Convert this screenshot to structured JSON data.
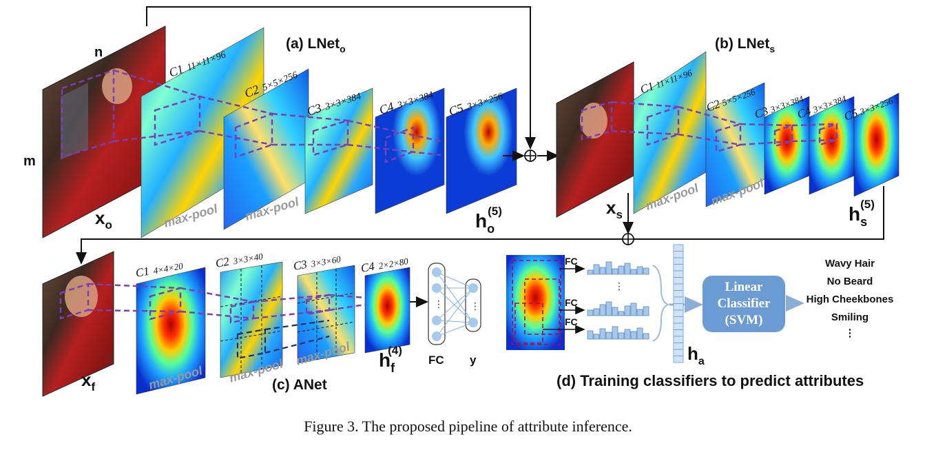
{
  "lnet_o": {
    "title": "(a) LNet",
    "title_sub": "o",
    "label_n": "n",
    "label_m": "m",
    "input_var": "x",
    "input_sub": "o",
    "layers": [
      {
        "name": "C1",
        "dims": "11×11×96"
      },
      {
        "name": "C2",
        "dims": "5×5×256"
      },
      {
        "name": "C3",
        "dims": "3×3×384"
      },
      {
        "name": "C4",
        "dims": "3×3×384"
      },
      {
        "name": "C5",
        "dims": "3×3×256"
      }
    ],
    "maxpool_1": "max-pool",
    "maxpool_2": "max-pool",
    "out_var": "h",
    "out_sub": "o",
    "out_sup": "(5)"
  },
  "lnet_s": {
    "title": "(b) LNet",
    "title_sub": "s",
    "input_var": "x",
    "input_sub": "s",
    "layers": [
      {
        "name": "C1",
        "dims": "11×11×96"
      },
      {
        "name": "C2",
        "dims": "5×5×256"
      },
      {
        "name": "C3",
        "dims": "3×3×384"
      },
      {
        "name": "C4",
        "dims": "3×3×384"
      },
      {
        "name": "C5",
        "dims": "3×3×256"
      }
    ],
    "maxpool_1": "max-pool",
    "maxpool_2": "max-pool",
    "out_var": "h",
    "out_sub": "s",
    "out_sup": "(5)"
  },
  "anet": {
    "title": "(c) ANet",
    "input_var": "x",
    "input_sub": "f",
    "layers": [
      {
        "name": "C1",
        "dims": "4×4×20"
      },
      {
        "name": "C2",
        "dims": "3×3×40"
      },
      {
        "name": "C3",
        "dims": "3×3×60"
      },
      {
        "name": "C4",
        "dims": "2×2×80"
      }
    ],
    "maxpool_1": "max-pool",
    "maxpool_2": "max-pool",
    "maxpool_3": "max-pool",
    "out_var": "h",
    "out_sub": "f",
    "out_sup": "(4)",
    "fc_label": "FC",
    "y_label": "y"
  },
  "training": {
    "title": "(d) Training classifiers to predict attributes",
    "fc_labels": [
      "FC",
      "FC",
      "FC"
    ],
    "ha_var": "h",
    "ha_sub": "a",
    "svm_lines": [
      "Linear",
      "Classifier",
      "(SVM)"
    ],
    "attributes": [
      "Wavy Hair",
      "No Beard",
      "High Cheekbones",
      "Smiling",
      "⋮"
    ]
  },
  "caption": "Figure 3. The proposed pipeline of attribute inference.",
  "colors": {
    "purple_dash": "#7a3fb0",
    "svm_box": "#6a9bd3",
    "histogram": "#a6c8ea",
    "arrow_grey": "#8aaed8"
  }
}
